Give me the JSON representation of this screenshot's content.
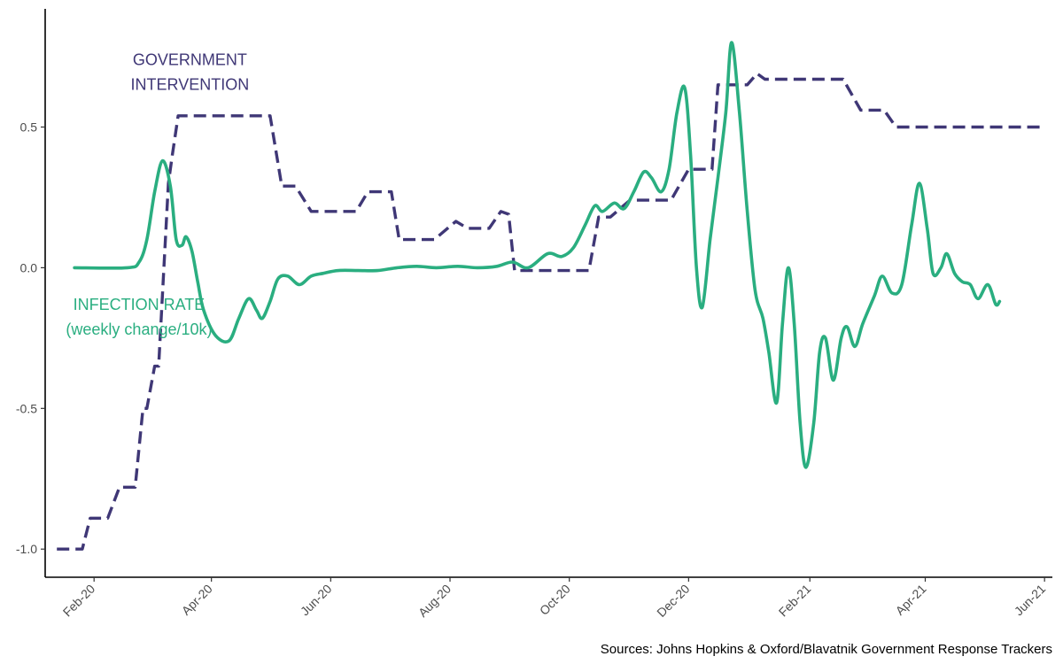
{
  "chart_data": {
    "type": "line",
    "x_axis": {
      "type": "date",
      "range": [
        "2020-01-07",
        "2021-06-05"
      ],
      "ticks": [
        {
          "date": "2020-02-01",
          "label": "Feb-20"
        },
        {
          "date": "2020-04-01",
          "label": "Apr-20"
        },
        {
          "date": "2020-06-01",
          "label": "Jun-20"
        },
        {
          "date": "2020-08-01",
          "label": "Aug-20"
        },
        {
          "date": "2020-10-01",
          "label": "Oct-20"
        },
        {
          "date": "2020-12-01",
          "label": "Dec-20"
        },
        {
          "date": "2021-02-01",
          "label": "Feb-21"
        },
        {
          "date": "2021-04-01",
          "label": "Apr-21"
        },
        {
          "date": "2021-06-01",
          "label": "Jun-21"
        }
      ]
    },
    "y_axis": {
      "range": [
        -1.1,
        0.92
      ],
      "ticks": [
        {
          "value": 0.5,
          "label": "0.5"
        },
        {
          "value": 0.0,
          "label": "0.0"
        },
        {
          "value": -0.5,
          "label": "-0.5"
        },
        {
          "value": -1.0,
          "label": "-1.0"
        }
      ]
    },
    "grid": false,
    "series": [
      {
        "name": "GOVERNMENT INTERVENTION",
        "color": "#3f3776",
        "style": "dashed",
        "points": [
          {
            "x": "2020-01-13",
            "y": -1.0
          },
          {
            "x": "2020-01-26",
            "y": -1.0
          },
          {
            "x": "2020-01-30",
            "y": -0.89
          },
          {
            "x": "2020-02-08",
            "y": -0.89
          },
          {
            "x": "2020-02-14",
            "y": -0.78
          },
          {
            "x": "2020-02-22",
            "y": -0.78
          },
          {
            "x": "2020-02-26",
            "y": -0.5
          },
          {
            "x": "2020-02-28",
            "y": -0.5
          },
          {
            "x": "2020-03-03",
            "y": -0.35
          },
          {
            "x": "2020-03-05",
            "y": -0.35
          },
          {
            "x": "2020-03-10",
            "y": 0.3
          },
          {
            "x": "2020-03-12",
            "y": 0.4
          },
          {
            "x": "2020-03-15",
            "y": 0.54
          },
          {
            "x": "2020-05-01",
            "y": 0.54
          },
          {
            "x": "2020-05-07",
            "y": 0.29
          },
          {
            "x": "2020-05-14",
            "y": 0.29
          },
          {
            "x": "2020-05-22",
            "y": 0.2
          },
          {
            "x": "2020-06-14",
            "y": 0.2
          },
          {
            "x": "2020-06-20",
            "y": 0.27
          },
          {
            "x": "2020-07-02",
            "y": 0.27
          },
          {
            "x": "2020-07-06",
            "y": 0.1
          },
          {
            "x": "2020-07-24",
            "y": 0.1
          },
          {
            "x": "2020-08-04",
            "y": 0.165
          },
          {
            "x": "2020-08-10",
            "y": 0.14
          },
          {
            "x": "2020-08-21",
            "y": 0.14
          },
          {
            "x": "2020-08-27",
            "y": 0.2
          },
          {
            "x": "2020-08-31",
            "y": 0.19
          },
          {
            "x": "2020-09-03",
            "y": -0.01
          },
          {
            "x": "2020-10-11",
            "y": -0.01
          },
          {
            "x": "2020-10-16",
            "y": 0.18
          },
          {
            "x": "2020-10-22",
            "y": 0.18
          },
          {
            "x": "2020-11-01",
            "y": 0.24
          },
          {
            "x": "2020-11-22",
            "y": 0.24
          },
          {
            "x": "2020-12-01",
            "y": 0.35
          },
          {
            "x": "2020-12-13",
            "y": 0.35
          },
          {
            "x": "2020-12-16",
            "y": 0.65
          },
          {
            "x": "2020-12-31",
            "y": 0.65
          },
          {
            "x": "2021-01-05",
            "y": 0.69
          },
          {
            "x": "2021-01-09",
            "y": 0.67
          },
          {
            "x": "2021-02-18",
            "y": 0.67
          },
          {
            "x": "2021-02-27",
            "y": 0.56
          },
          {
            "x": "2021-03-11",
            "y": 0.56
          },
          {
            "x": "2021-03-17",
            "y": 0.5
          },
          {
            "x": "2021-06-01",
            "y": 0.5
          }
        ]
      },
      {
        "name": "INFECTION RATE (weekly change/10k)",
        "color": "#2aae80",
        "style": "solid",
        "points": [
          {
            "x": "2020-01-22",
            "y": 0.0
          },
          {
            "x": "2020-02-18",
            "y": 0.0
          },
          {
            "x": "2020-02-24",
            "y": 0.02
          },
          {
            "x": "2020-02-28",
            "y": 0.1
          },
          {
            "x": "2020-03-03",
            "y": 0.27
          },
          {
            "x": "2020-03-07",
            "y": 0.38
          },
          {
            "x": "2020-03-11",
            "y": 0.29
          },
          {
            "x": "2020-03-14",
            "y": 0.1
          },
          {
            "x": "2020-03-17",
            "y": 0.08
          },
          {
            "x": "2020-03-19",
            "y": 0.11
          },
          {
            "x": "2020-03-22",
            "y": 0.06
          },
          {
            "x": "2020-03-25",
            "y": -0.05
          },
          {
            "x": "2020-03-28",
            "y": -0.15
          },
          {
            "x": "2020-04-03",
            "y": -0.24
          },
          {
            "x": "2020-04-10",
            "y": -0.26
          },
          {
            "x": "2020-04-15",
            "y": -0.18
          },
          {
            "x": "2020-04-20",
            "y": -0.11
          },
          {
            "x": "2020-04-24",
            "y": -0.15
          },
          {
            "x": "2020-04-27",
            "y": -0.18
          },
          {
            "x": "2020-05-01",
            "y": -0.12
          },
          {
            "x": "2020-05-05",
            "y": -0.04
          },
          {
            "x": "2020-05-10",
            "y": -0.03
          },
          {
            "x": "2020-05-16",
            "y": -0.06
          },
          {
            "x": "2020-05-22",
            "y": -0.03
          },
          {
            "x": "2020-05-28",
            "y": -0.02
          },
          {
            "x": "2020-06-05",
            "y": -0.01
          },
          {
            "x": "2020-06-15",
            "y": -0.01
          },
          {
            "x": "2020-06-25",
            "y": -0.01
          },
          {
            "x": "2020-07-05",
            "y": 0.0
          },
          {
            "x": "2020-07-15",
            "y": 0.005
          },
          {
            "x": "2020-07-25",
            "y": 0.0
          },
          {
            "x": "2020-08-05",
            "y": 0.005
          },
          {
            "x": "2020-08-15",
            "y": 0.0
          },
          {
            "x": "2020-08-25",
            "y": 0.005
          },
          {
            "x": "2020-09-02",
            "y": 0.02
          },
          {
            "x": "2020-09-10",
            "y": 0.0
          },
          {
            "x": "2020-09-20",
            "y": 0.05
          },
          {
            "x": "2020-09-27",
            "y": 0.04
          },
          {
            "x": "2020-10-03",
            "y": 0.07
          },
          {
            "x": "2020-10-09",
            "y": 0.15
          },
          {
            "x": "2020-10-14",
            "y": 0.22
          },
          {
            "x": "2020-10-18",
            "y": 0.2
          },
          {
            "x": "2020-10-24",
            "y": 0.23
          },
          {
            "x": "2020-10-29",
            "y": 0.21
          },
          {
            "x": "2020-11-03",
            "y": 0.27
          },
          {
            "x": "2020-11-08",
            "y": 0.34
          },
          {
            "x": "2020-11-12",
            "y": 0.32
          },
          {
            "x": "2020-11-17",
            "y": 0.27
          },
          {
            "x": "2020-11-21",
            "y": 0.35
          },
          {
            "x": "2020-11-25",
            "y": 0.55
          },
          {
            "x": "2020-11-29",
            "y": 0.64
          },
          {
            "x": "2020-12-02",
            "y": 0.4
          },
          {
            "x": "2020-12-05",
            "y": 0.0
          },
          {
            "x": "2020-12-08",
            "y": -0.14
          },
          {
            "x": "2020-12-12",
            "y": 0.1
          },
          {
            "x": "2020-12-16",
            "y": 0.32
          },
          {
            "x": "2020-12-20",
            "y": 0.55
          },
          {
            "x": "2020-12-23",
            "y": 0.8
          },
          {
            "x": "2020-12-27",
            "y": 0.55
          },
          {
            "x": "2020-12-31",
            "y": 0.2
          },
          {
            "x": "2021-01-04",
            "y": -0.08
          },
          {
            "x": "2021-01-08",
            "y": -0.18
          },
          {
            "x": "2021-01-11",
            "y": -0.3
          },
          {
            "x": "2021-01-15",
            "y": -0.48
          },
          {
            "x": "2021-01-18",
            "y": -0.2
          },
          {
            "x": "2021-01-21",
            "y": 0.0
          },
          {
            "x": "2021-01-24",
            "y": -0.2
          },
          {
            "x": "2021-01-27",
            "y": -0.55
          },
          {
            "x": "2021-01-30",
            "y": -0.71
          },
          {
            "x": "2021-02-03",
            "y": -0.55
          },
          {
            "x": "2021-02-06",
            "y": -0.3
          },
          {
            "x": "2021-02-09",
            "y": -0.25
          },
          {
            "x": "2021-02-13",
            "y": -0.4
          },
          {
            "x": "2021-02-17",
            "y": -0.25
          },
          {
            "x": "2021-02-20",
            "y": -0.21
          },
          {
            "x": "2021-02-24",
            "y": -0.28
          },
          {
            "x": "2021-02-28",
            "y": -0.2
          },
          {
            "x": "2021-03-06",
            "y": -0.1
          },
          {
            "x": "2021-03-10",
            "y": -0.03
          },
          {
            "x": "2021-03-15",
            "y": -0.09
          },
          {
            "x": "2021-03-20",
            "y": -0.06
          },
          {
            "x": "2021-03-25",
            "y": 0.15
          },
          {
            "x": "2021-03-29",
            "y": 0.3
          },
          {
            "x": "2021-04-02",
            "y": 0.14
          },
          {
            "x": "2021-04-05",
            "y": -0.02
          },
          {
            "x": "2021-04-09",
            "y": 0.0
          },
          {
            "x": "2021-04-12",
            "y": 0.05
          },
          {
            "x": "2021-04-16",
            "y": -0.02
          },
          {
            "x": "2021-04-20",
            "y": -0.05
          },
          {
            "x": "2021-04-24",
            "y": -0.06
          },
          {
            "x": "2021-04-28",
            "y": -0.11
          },
          {
            "x": "2021-05-03",
            "y": -0.06
          },
          {
            "x": "2021-05-07",
            "y": -0.13
          },
          {
            "x": "2021-05-09",
            "y": -0.12
          }
        ]
      }
    ],
    "annotations": [
      {
        "lines": [
          "GOVERNMENT",
          "INTERVENTION"
        ],
        "series": "GOVERNMENT INTERVENTION",
        "color": "#3f3776",
        "date": "2020-03-21",
        "y": 0.72
      },
      {
        "lines": [
          "INFECTION RATE",
          "(weekly change/10k)"
        ],
        "series": "INFECTION RATE (weekly change/10k)",
        "color": "#2aae80",
        "date": "2020-02-24",
        "y": -0.15
      }
    ],
    "source": "Sources: Johns Hopkins & Oxford/Blavatnik Government Response Trackers"
  }
}
